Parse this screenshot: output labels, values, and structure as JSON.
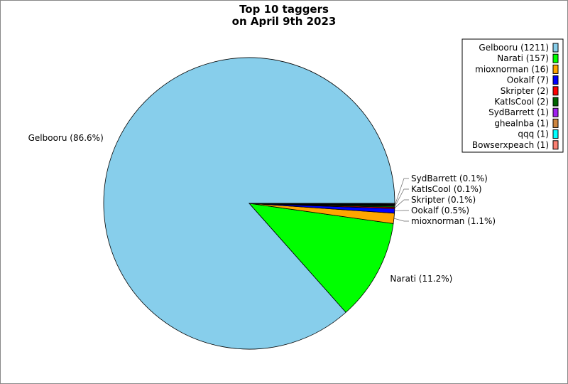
{
  "chart_data": {
    "type": "pie",
    "title_lines": [
      "Top 10 taggers",
      "on April 9th 2023"
    ],
    "start_angle_deg": 0,
    "direction": "counterclockwise",
    "legend_placement": "top-right",
    "slices": [
      {
        "name": "Gelbooru",
        "value": 1211,
        "legend": "Gelbooru (1211)",
        "label": "Gelbooru (86.6%)",
        "color": "#87ceeb"
      },
      {
        "name": "Narati",
        "value": 157,
        "legend": "Narati (157)",
        "label": "Narati (11.2%)",
        "color": "#00ff00"
      },
      {
        "name": "mioxnorman",
        "value": 16,
        "legend": "mioxnorman (16)",
        "label": "mioxnorman (1.1%)",
        "color": "#ffa500"
      },
      {
        "name": "Ookalf",
        "value": 7,
        "legend": "Ookalf (7)",
        "label": "Ookalf (0.5%)",
        "color": "#0000ff"
      },
      {
        "name": "Skripter",
        "value": 2,
        "legend": "Skripter (2)",
        "label": "Skripter (0.1%)",
        "color": "#ff0000"
      },
      {
        "name": "KatIsCool",
        "value": 2,
        "legend": "KatIsCool (2)",
        "label": "KatIsCool (0.1%)",
        "color": "#006400"
      },
      {
        "name": "SydBarrett",
        "value": 1,
        "legend": "SydBarrett (1)",
        "label": "SydBarrett (0.1%)",
        "color": "#a020f0"
      },
      {
        "name": "ghealnba",
        "value": 1,
        "legend": "ghealnba (1)",
        "label": "",
        "color": "#cd853f"
      },
      {
        "name": "qqq",
        "value": 1,
        "legend": "qqq (1)",
        "label": "",
        "color": "#00ffff"
      },
      {
        "name": "Bowserxpeach",
        "value": 1,
        "legend": "Bowserxpeach (1)",
        "label": "",
        "color": "#fa8072"
      }
    ]
  }
}
